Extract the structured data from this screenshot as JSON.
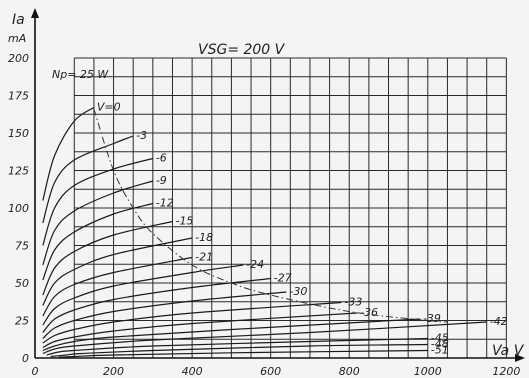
{
  "chart_data": {
    "type": "line",
    "title": "VSG= 200 V",
    "xlabel": "Va V",
    "ylabel": "Ia",
    "ylabel_unit": "mA",
    "xlim": [
      0,
      1250
    ],
    "ylim": [
      0,
      200
    ],
    "grid": true,
    "x_ticks": [
      "0",
      "200",
      "400",
      "600",
      "800",
      "1000",
      "1200"
    ],
    "y_ticks": [
      "0",
      "25",
      "50",
      "75",
      "100",
      "125",
      "150",
      "175",
      "200"
    ],
    "dissipation_label": "Np= 25 W",
    "dissipation_curve": [
      {
        "x": 150,
        "y": 166
      },
      {
        "x": 200,
        "y": 125
      },
      {
        "x": 250,
        "y": 100
      },
      {
        "x": 300,
        "y": 83
      },
      {
        "x": 400,
        "y": 62
      },
      {
        "x": 500,
        "y": 50
      },
      {
        "x": 600,
        "y": 42
      },
      {
        "x": 800,
        "y": 31
      },
      {
        "x": 1000,
        "y": 25
      },
      {
        "x": 1050,
        "y": 24
      }
    ],
    "series": [
      {
        "name": "V=0",
        "x": [
          20,
          50,
          100,
          150
        ],
        "y": [
          105,
          135,
          158,
          167
        ]
      },
      {
        "name": "-3",
        "x": [
          20,
          50,
          100,
          200,
          250
        ],
        "y": [
          90,
          117,
          132,
          143,
          148
        ]
      },
      {
        "name": "-6",
        "x": [
          20,
          50,
          100,
          200,
          300
        ],
        "y": [
          75,
          100,
          115,
          126,
          133
        ]
      },
      {
        "name": "-9",
        "x": [
          20,
          50,
          100,
          200,
          300
        ],
        "y": [
          62,
          85,
          98,
          110,
          118
        ]
      },
      {
        "name": "-12",
        "x": [
          20,
          50,
          100,
          200,
          300
        ],
        "y": [
          52,
          72,
          84,
          96,
          103
        ]
      },
      {
        "name": "-15",
        "x": [
          20,
          50,
          100,
          200,
          350
        ],
        "y": [
          42,
          60,
          71,
          82,
          91
        ]
      },
      {
        "name": "-18",
        "x": [
          20,
          50,
          100,
          200,
          400
        ],
        "y": [
          35,
          50,
          59,
          69,
          80
        ]
      },
      {
        "name": "-21",
        "x": [
          20,
          50,
          100,
          200,
          400
        ],
        "y": [
          28,
          41,
          49,
          57,
          67
        ]
      },
      {
        "name": "-24",
        "x": [
          20,
          50,
          100,
          200,
          400,
          530
        ],
        "y": [
          22,
          33,
          40,
          48,
          57,
          62
        ]
      },
      {
        "name": "-27",
        "x": [
          20,
          50,
          100,
          200,
          400,
          600
        ],
        "y": [
          17,
          26,
          32,
          39,
          47,
          53
        ]
      },
      {
        "name": "-30",
        "x": [
          20,
          50,
          100,
          200,
          400,
          640
        ],
        "y": [
          13,
          20,
          25,
          31,
          38,
          44
        ]
      },
      {
        "name": "-33",
        "x": [
          20,
          50,
          100,
          200,
          400,
          780
        ],
        "y": [
          10,
          15,
          19,
          24,
          30,
          37
        ]
      },
      {
        "name": "-36",
        "x": [
          20,
          50,
          100,
          200,
          400,
          820
        ],
        "y": [
          7,
          11,
          14,
          18,
          23,
          30
        ]
      },
      {
        "name": "-39",
        "x": [
          20,
          50,
          100,
          200,
          500,
          980
        ],
        "y": [
          5,
          8,
          11,
          14,
          19,
          26
        ]
      },
      {
        "name": "-42",
        "x": [
          20,
          50,
          100,
          300,
          700,
          1150
        ],
        "y": [
          3,
          6,
          8,
          12,
          17,
          24
        ]
      },
      {
        "name": "-45",
        "x": [
          30,
          60,
          100,
          300,
          700,
          1000
        ],
        "y": [
          2,
          4,
          5,
          8,
          11,
          13
        ]
      },
      {
        "name": "-48",
        "x": [
          40,
          80,
          120,
          300,
          700,
          1000
        ],
        "y": [
          1,
          2,
          3,
          5,
          8,
          9
        ]
      },
      {
        "name": "-51",
        "x": [
          60,
          100,
          200,
          500,
          1000
        ],
        "y": [
          0.5,
          1,
          2,
          3.5,
          5
        ]
      }
    ]
  }
}
